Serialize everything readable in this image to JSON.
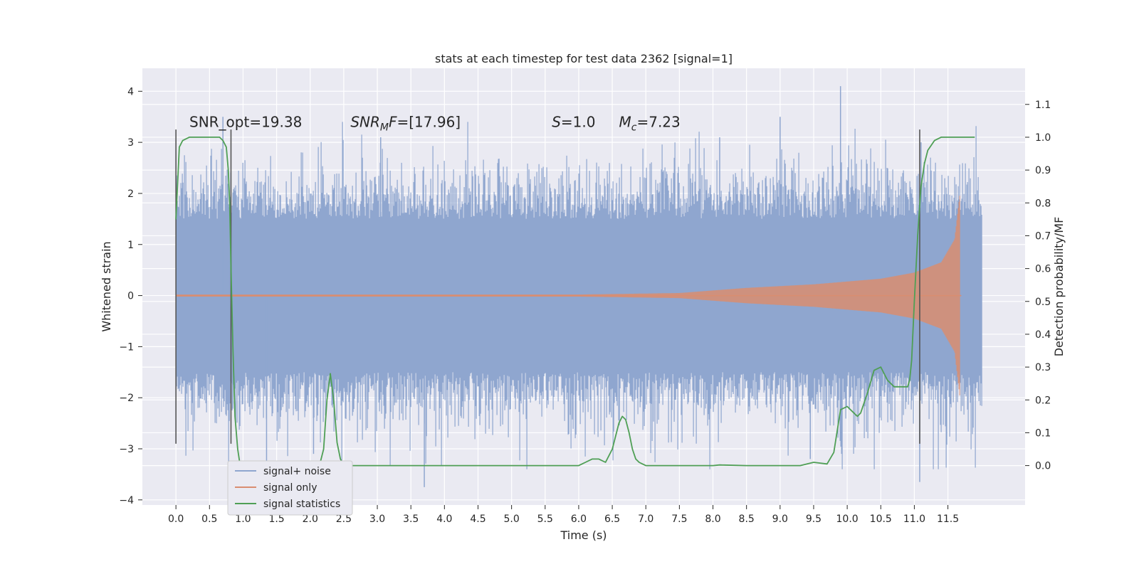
{
  "chart_data": {
    "type": "line",
    "title": "stats at each timestep for test data 2362 [signal=1]",
    "xlabel": "Time (s)",
    "ylabel": "Whitened strain",
    "y2label": "Detection probability/MF",
    "xlim": [
      -0.5,
      12.65
    ],
    "ylim": [
      -4.1,
      4.45
    ],
    "y2lim": [
      -0.12,
      1.21
    ],
    "grid": true,
    "x_ticks": [
      "0.0",
      "0.5",
      "1.0",
      "1.5",
      "2.0",
      "2.5",
      "3.0",
      "3.5",
      "4.0",
      "4.5",
      "5.0",
      "5.5",
      "6.0",
      "6.5",
      "7.0",
      "7.5",
      "8.0",
      "8.5",
      "9.0",
      "9.5",
      "10.0",
      "10.5",
      "11.0",
      "11.5"
    ],
    "x_tick_values": [
      0,
      0.5,
      1,
      1.5,
      2,
      2.5,
      3,
      3.5,
      4,
      4.5,
      5,
      5.5,
      6,
      6.5,
      7,
      7.5,
      8,
      8.5,
      9,
      9.5,
      10,
      10.5,
      11,
      11.5
    ],
    "y_ticks": [
      "4",
      "3",
      "2",
      "1",
      "0",
      "−1",
      "−2",
      "−3",
      "−4"
    ],
    "y_tick_values": [
      4,
      3,
      2,
      1,
      0,
      -1,
      -2,
      -3,
      -4
    ],
    "y2_ticks": [
      "1.1",
      "1.0",
      "0.9",
      "0.8",
      "0.7",
      "0.6",
      "0.5",
      "0.4",
      "0.3",
      "0.2",
      "0.1",
      "0.0"
    ],
    "y2_tick_values": [
      1.1,
      1.0,
      0.9,
      0.8,
      0.7,
      0.6,
      0.5,
      0.4,
      0.3,
      0.2,
      0.1,
      0.0
    ],
    "legend_placement": "lower-left",
    "series": [
      {
        "name": "signal+ noise",
        "color": "#8fa6cf",
        "x_range": [
          0,
          12.0
        ],
        "description_values": {
          "typical_peak": 2.3,
          "max": 4.1,
          "min": -3.75
        }
      },
      {
        "name": "signal only",
        "color": "#d98d70",
        "x_range": [
          0,
          11.7
        ],
        "envelope": {
          "x": [
            0,
            6.0,
            7.5,
            8.5,
            9.5,
            10.5,
            11.0,
            11.4,
            11.6,
            11.68
          ],
          "amplitude": [
            0.02,
            0.02,
            0.05,
            0.15,
            0.22,
            0.33,
            0.45,
            0.65,
            1.1,
            2.0
          ]
        }
      },
      {
        "name": "signal statistics",
        "color": "#4f9f55",
        "axis": "right",
        "x": [
          0,
          0.05,
          0.1,
          0.2,
          0.3,
          0.4,
          0.5,
          0.6,
          0.65,
          0.7,
          0.75,
          0.78,
          0.8,
          0.82,
          0.85,
          0.88,
          0.92,
          0.95,
          1.0,
          1.05,
          1.2,
          1.6,
          2.0,
          2.1,
          2.15,
          2.2,
          2.25,
          2.3,
          2.35,
          2.4,
          2.45,
          2.5,
          2.55,
          2.6,
          2.7,
          3.0,
          4.0,
          5.0,
          6.0,
          6.05,
          6.1,
          6.2,
          6.3,
          6.4,
          6.5,
          6.55,
          6.6,
          6.65,
          6.7,
          6.75,
          6.8,
          6.85,
          6.9,
          6.95,
          7.0,
          7.1,
          7.5,
          8.0,
          8.1,
          8.5,
          9.0,
          9.3,
          9.5,
          9.7,
          9.8,
          9.9,
          10.0,
          10.1,
          10.15,
          10.2,
          10.3,
          10.4,
          10.5,
          10.6,
          10.7,
          10.8,
          10.9,
          10.93,
          10.96,
          11.0,
          11.05,
          11.1,
          11.15,
          11.2,
          11.3,
          11.4,
          11.5,
          11.7,
          11.9
        ],
        "y": [
          0.75,
          0.97,
          0.99,
          1.0,
          1.0,
          1.0,
          1.0,
          1.0,
          1.0,
          0.99,
          0.97,
          0.9,
          0.8,
          0.6,
          0.35,
          0.15,
          0.05,
          0.01,
          0.0,
          0.0,
          0.0,
          0.0,
          0.0,
          0.0,
          0.01,
          0.05,
          0.2,
          0.28,
          0.2,
          0.07,
          0.02,
          0.0,
          0.0,
          0.0,
          0.0,
          0.0,
          0.0,
          0.0,
          0.0,
          0.005,
          0.01,
          0.02,
          0.02,
          0.01,
          0.05,
          0.09,
          0.13,
          0.15,
          0.14,
          0.1,
          0.05,
          0.02,
          0.01,
          0.005,
          0.0,
          0.0,
          0.0,
          0.0,
          0.002,
          0.0,
          0.0,
          0.0,
          0.01,
          0.005,
          0.04,
          0.17,
          0.18,
          0.16,
          0.15,
          0.16,
          0.22,
          0.29,
          0.3,
          0.26,
          0.24,
          0.24,
          0.24,
          0.26,
          0.32,
          0.5,
          0.7,
          0.85,
          0.92,
          0.96,
          0.99,
          1.0,
          1.0,
          1.0,
          1.0
        ]
      }
    ],
    "vertical_lines": {
      "x": [
        0.0,
        0.82,
        11.08
      ],
      "y_range": [
        -2.9,
        3.25
      ]
    }
  },
  "annotations": [
    {
      "text": "SNR_opt=19.38",
      "x": 0.2
    },
    {
      "text": "SNR",
      "sub": "M",
      "suffix": "F=[17.96]",
      "x": 2.6,
      "italic": true
    },
    {
      "text": "S",
      "suffix": "=1.0",
      "x": 5.6,
      "italic": true
    },
    {
      "text": "M",
      "sub": "c",
      "suffix": "=7.23",
      "x": 6.6,
      "italic": true
    }
  ],
  "annotation_y": 3.3
}
